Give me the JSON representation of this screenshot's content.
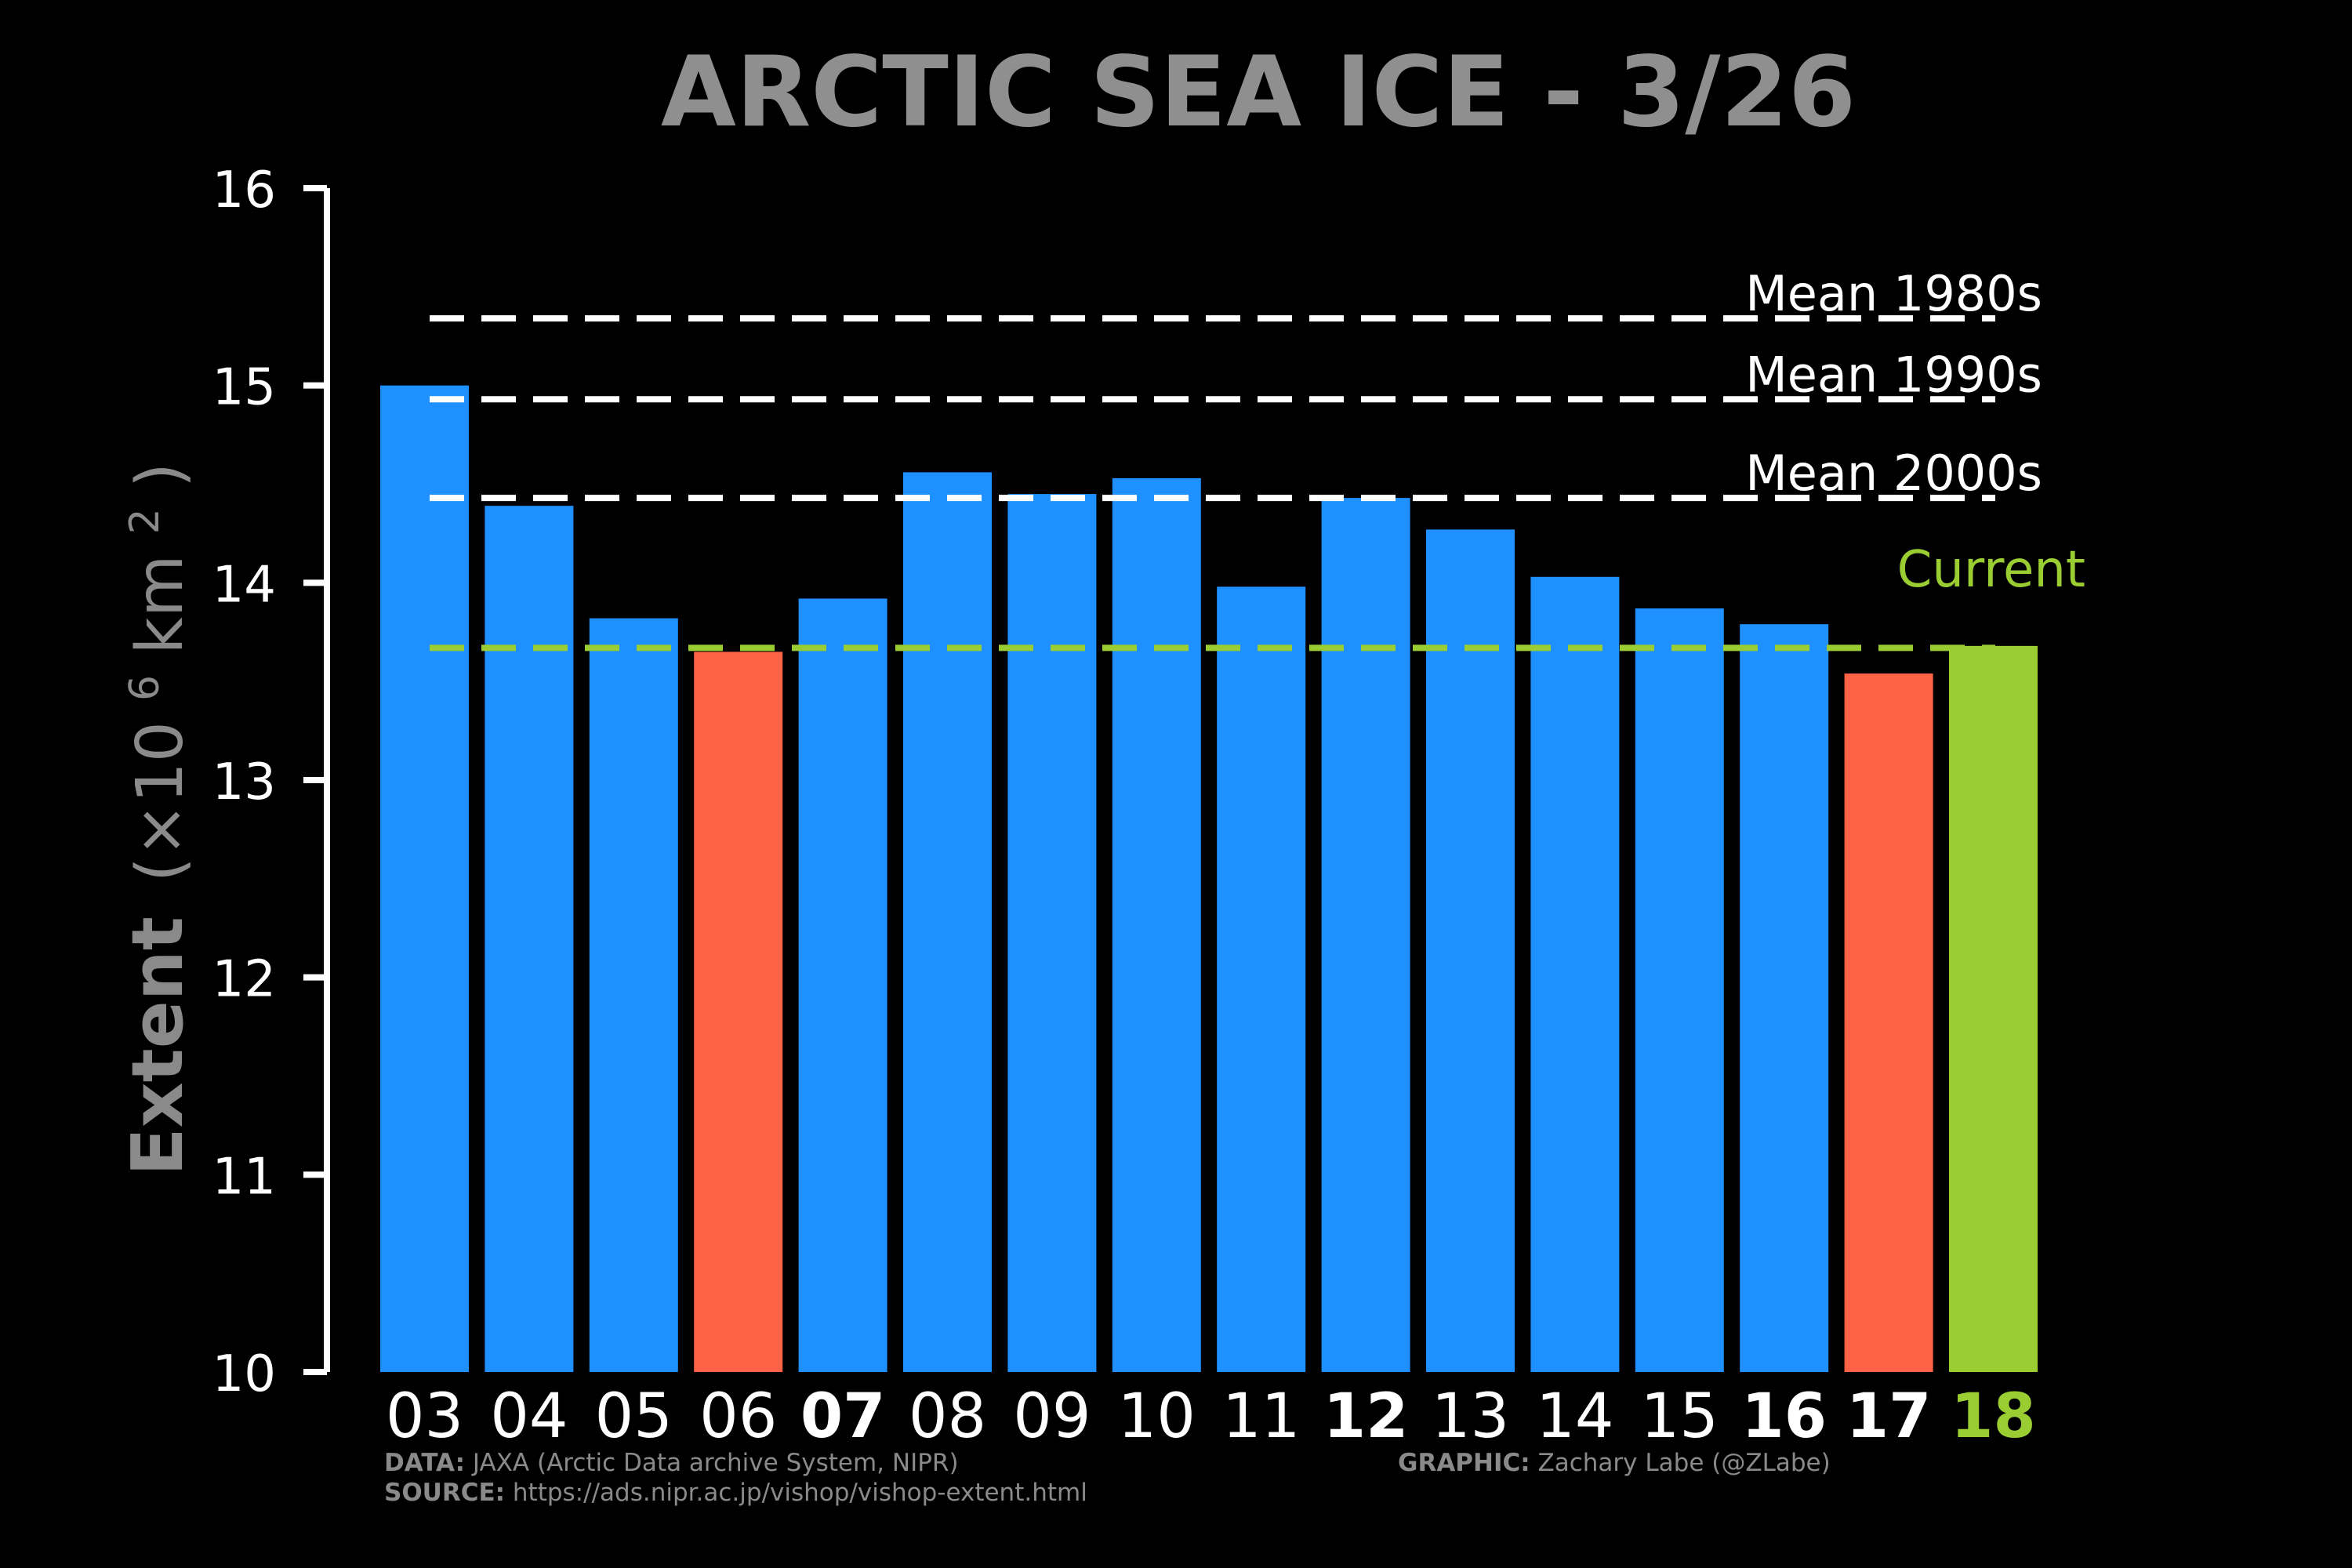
{
  "chart_data": {
    "type": "bar",
    "title": "ARCTIC SEA ICE - 3/26",
    "ylabel": {
      "bold": "Extent",
      "unit_prefix": "(×10",
      "unit_exp": "6",
      "unit_mid": " km",
      "unit_exp2": "2",
      "unit_suffix": ")"
    },
    "ylim": [
      10,
      16
    ],
    "yticks": [
      "10",
      "11",
      "12",
      "13",
      "14",
      "15",
      "16"
    ],
    "categories": [
      "03",
      "04",
      "05",
      "06",
      "07",
      "08",
      "09",
      "10",
      "11",
      "12",
      "13",
      "14",
      "15",
      "16",
      "17",
      "18"
    ],
    "values": [
      15.0,
      14.39,
      13.82,
      13.65,
      13.92,
      14.56,
      14.45,
      14.53,
      13.98,
      14.43,
      14.27,
      14.03,
      13.87,
      13.79,
      13.54,
      13.68
    ],
    "bar_colors": [
      "#1e90ff",
      "#1e90ff",
      "#1e90ff",
      "#ff6347",
      "#1e90ff",
      "#1e90ff",
      "#1e90ff",
      "#1e90ff",
      "#1e90ff",
      "#1e90ff",
      "#1e90ff",
      "#1e90ff",
      "#1e90ff",
      "#1e90ff",
      "#ff6347",
      "#9acd32"
    ],
    "label_bold": [
      false,
      false,
      false,
      false,
      true,
      false,
      false,
      false,
      false,
      true,
      false,
      false,
      false,
      true,
      true,
      true
    ],
    "label_colors": [
      "#ffffff",
      "#ffffff",
      "#ffffff",
      "#ffffff",
      "#ffffff",
      "#ffffff",
      "#ffffff",
      "#ffffff",
      "#ffffff",
      "#ffffff",
      "#ffffff",
      "#ffffff",
      "#ffffff",
      "#ffffff",
      "#ffffff",
      "#9acd32"
    ],
    "reference_lines": [
      {
        "label": "Mean 1980s",
        "value": 15.34,
        "color": "#ffffff"
      },
      {
        "label": "Mean 1990s",
        "value": 14.93,
        "color": "#ffffff"
      },
      {
        "label": "Mean 2000s",
        "value": 14.43,
        "color": "#ffffff"
      },
      {
        "label": "Current",
        "value": 13.67,
        "color": "#9acd32"
      }
    ],
    "colors": {
      "background": "#000000",
      "bar": "#1e90ff",
      "low": "#ff6347",
      "current": "#9acd32",
      "title": "#8f8f8f",
      "axis": "#ffffff",
      "ylabel": "#8a8a8a"
    }
  },
  "footer": {
    "data_label": "DATA:",
    "data_text": " JAXA (Arctic Data archive System, NIPR)",
    "source_label": "SOURCE:",
    "source_text": " https://ads.nipr.ac.jp/vishop/vishop-extent.html",
    "graphic_label": "GRAPHIC:",
    "graphic_text": " Zachary Labe (@ZLabe)"
  }
}
